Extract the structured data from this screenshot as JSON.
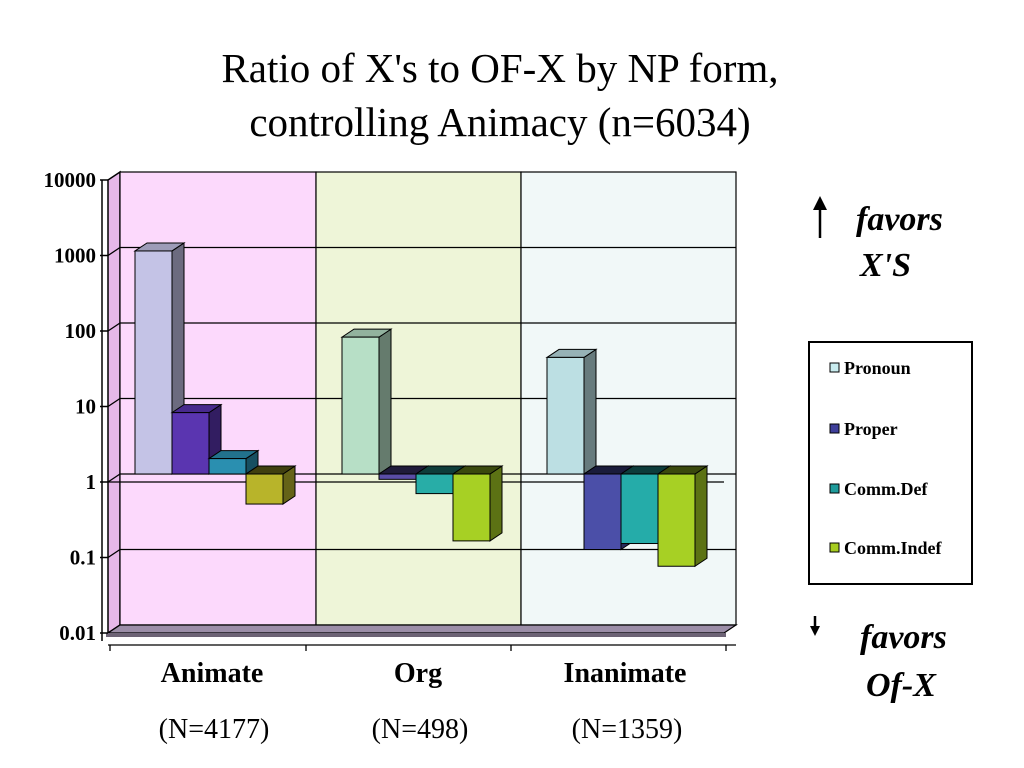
{
  "chart_data": {
    "type": "bar",
    "title_line1": "Ratio of X's to OF-X  by NP form,",
    "title_line2": "controlling Animacy (n=6034)",
    "y_scale": "log",
    "ylim": [
      0.01,
      10000
    ],
    "y_ticks": [
      "10000",
      "1000",
      "100",
      "10",
      "1",
      "0.1",
      "0.01"
    ],
    "grid": true,
    "legend_position": "right",
    "categories": [
      "Animate",
      "Org",
      "Inanimate"
    ],
    "category_counts": [
      "(N=4177)",
      "(N=498)",
      "(N=1359)"
    ],
    "series": [
      {
        "name": "Pronoun",
        "values": [
          900,
          65,
          35
        ]
      },
      {
        "name": "Proper",
        "values": [
          6.5,
          0.85,
          0.1
        ]
      },
      {
        "name": "Comm.Def",
        "values": [
          1.6,
          0.55,
          0.12
        ]
      },
      {
        "name": "Comm.Indef",
        "values": [
          0.4,
          0.13,
          0.06
        ]
      }
    ],
    "annotations": {
      "up_line1": "favors",
      "up_line2": "X'S",
      "down_line1": "favors",
      "down_line2": "Of-X"
    },
    "colors": {
      "panel_backgrounds": [
        "#fcd9fc",
        "#eef5d8",
        "#f1f8f8"
      ],
      "series_by_category": [
        [
          "#c4c3e6",
          "#5a35b0",
          "#2a8fb0",
          "#b8b42a"
        ],
        [
          "#b7dfc6",
          "#5a4da6",
          "#28ada7",
          "#a7d024"
        ],
        [
          "#bcdfe3",
          "#4b4fa8",
          "#25aca9",
          "#a7d024"
        ]
      ],
      "legend_swatches": [
        "#c9ecef",
        "#3e3f9a",
        "#1f9b9b",
        "#a6cc20"
      ]
    }
  }
}
